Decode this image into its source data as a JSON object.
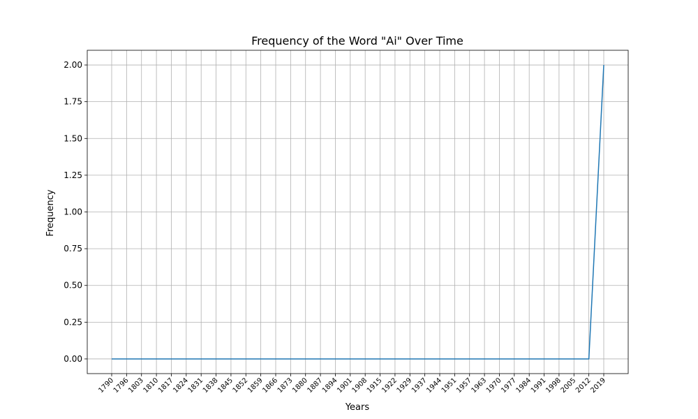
{
  "chart_data": {
    "type": "line",
    "title": "Frequency of the Word \"Ai\" Over Time",
    "xlabel": "Years",
    "ylabel": "Frequency",
    "x": [
      1790,
      1796,
      1803,
      1810,
      1817,
      1824,
      1831,
      1838,
      1845,
      1852,
      1859,
      1866,
      1873,
      1880,
      1887,
      1894,
      1901,
      1908,
      1915,
      1922,
      1929,
      1937,
      1944,
      1951,
      1957,
      1963,
      1970,
      1977,
      1984,
      1991,
      1998,
      2005,
      2012,
      2019
    ],
    "series": [
      {
        "values": [
          0,
          0,
          0,
          0,
          0,
          0,
          0,
          0,
          0,
          0,
          0,
          0,
          0,
          0,
          0,
          0,
          0,
          0,
          0,
          0,
          0,
          0,
          0,
          0,
          0,
          0,
          0,
          0,
          0,
          0,
          0,
          0,
          0,
          2
        ],
        "color": "#1f77b4"
      }
    ],
    "yticks": [
      "0.00",
      "0.25",
      "0.50",
      "0.75",
      "1.00",
      "1.25",
      "1.50",
      "1.75",
      "2.00"
    ],
    "ylim": [
      -0.1,
      2.1
    ],
    "grid": true,
    "legend": "none"
  }
}
